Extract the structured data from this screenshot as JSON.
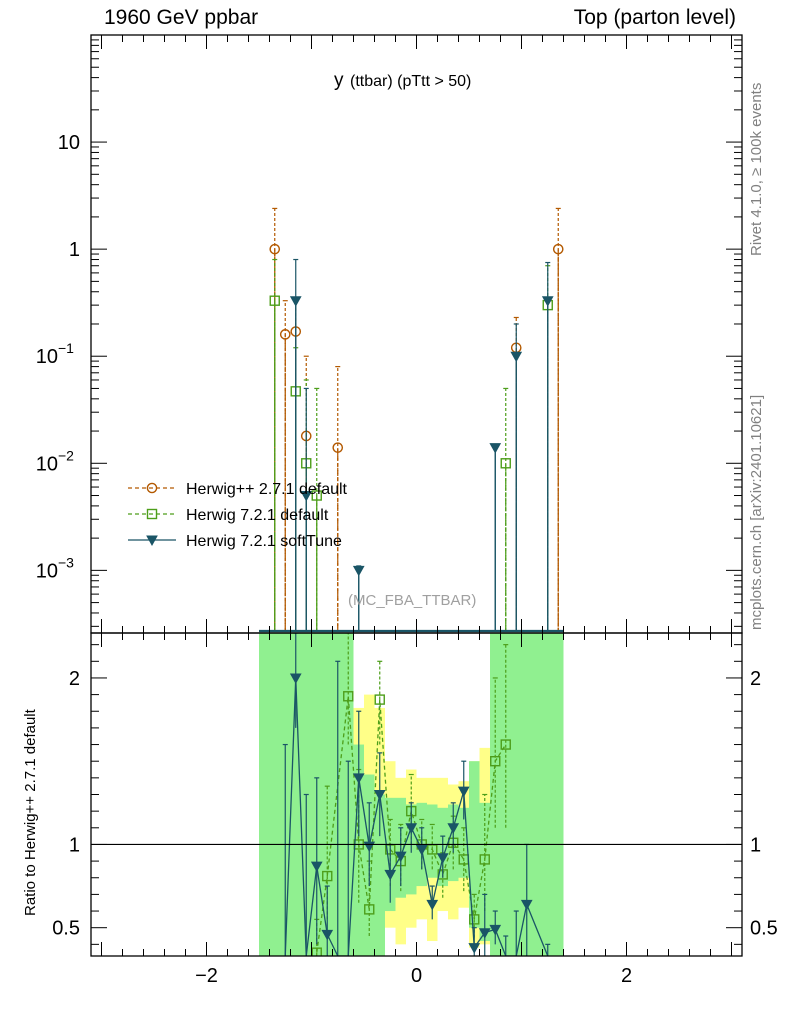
{
  "header": {
    "left": "1960 GeV ppbar",
    "right": "Top (parton level)"
  },
  "side_labels": {
    "rivet": "Rivet 4.1.0, ≥ 100k events",
    "mcplots": "mcplots.cern.ch [arXiv:2401.10621]"
  },
  "colors": {
    "herwigpp": "#b35900",
    "herwig721": "#4d9e1a",
    "softtune": "#1a5566",
    "band_green": "#90f090",
    "band_yellow": "#ffff88"
  },
  "chart_data": [
    {
      "type": "line",
      "panel": "main",
      "title_main": "y",
      "title_sub": "(ttbar)  (pTtt > 50)",
      "watermark": "(MC_FBA_TTBAR)",
      "yscale": "log",
      "xlim": [
        -3.1,
        3.1
      ],
      "ylim": [
        0.00026,
        100
      ],
      "ytick_labels": [
        {
          "value": 10,
          "label": "10"
        },
        {
          "value": 1,
          "label": "1"
        },
        {
          "value": 0.1,
          "label": "10",
          "exp": "−1"
        },
        {
          "value": 0.01,
          "label": "10",
          "exp": "−2"
        },
        {
          "value": 0.001,
          "label": "10",
          "exp": "−3"
        }
      ],
      "legend_position": "lower-left",
      "series": [
        {
          "name": "Herwig++ 2.7.1 default",
          "marker": "open-circle",
          "linestyle": "dashed",
          "points": [
            {
              "x": -1.35,
              "y": 1.0,
              "up": 2.4
            },
            {
              "x": -1.25,
              "y": 0.16,
              "up": 0.33
            },
            {
              "x": -1.15,
              "y": 0.17,
              "up": 0.35
            },
            {
              "x": -1.05,
              "y": 0.018,
              "up": 0.1
            },
            {
              "x": -0.75,
              "y": 0.014,
              "up": 0.08
            },
            {
              "x": 0.95,
              "y": 0.12,
              "up": 0.23
            },
            {
              "x": 1.35,
              "y": 1.0,
              "up": 2.4
            }
          ]
        },
        {
          "name": "Herwig 7.2.1 default",
          "marker": "open-square",
          "linestyle": "dashed",
          "points": [
            {
              "x": -1.35,
              "y": 0.33,
              "up": 0.8
            },
            {
              "x": -1.15,
              "y": 0.047,
              "up": 0.12
            },
            {
              "x": -1.05,
              "y": 0.01,
              "up": 0.06
            },
            {
              "x": -0.95,
              "y": 0.005,
              "up": 0.05
            },
            {
              "x": 0.85,
              "y": 0.01,
              "up": 0.05
            },
            {
              "x": 1.25,
              "y": 0.3,
              "up": 0.7
            }
          ]
        },
        {
          "name": "Herwig 7.2.1 softTune",
          "marker": "filled-triangle-down",
          "linestyle": "solid",
          "points": [
            {
              "x": -1.15,
              "y": 0.33,
              "up": 0.8
            },
            {
              "x": -1.05,
              "y": 0.005,
              "up": 0.05
            },
            {
              "x": -0.55,
              "y": 0.001,
              "up": 0.0011
            },
            {
              "x": 0.75,
              "y": 0.014,
              "up": 0.014
            },
            {
              "x": 0.95,
              "y": 0.1,
              "up": 0.2
            },
            {
              "x": 1.25,
              "y": 0.33,
              "up": 0.75
            }
          ]
        }
      ]
    },
    {
      "type": "line",
      "panel": "ratio",
      "ylabel": "Ratio to Herwig++ 2.7.1 default",
      "xlabel": "",
      "xlim": [
        -3.1,
        3.1
      ],
      "ylim": [
        0.33,
        2.27
      ],
      "yticks": [
        0.5,
        1,
        2
      ],
      "ytick_labels": [
        "0.5",
        "1",
        "2"
      ],
      "xticks": [
        -2,
        0,
        2
      ],
      "xtick_labels": [
        "−2",
        "0",
        "2"
      ],
      "reference_line": 1,
      "band": {
        "edges": [
          -1.5,
          -1.4,
          -1.3,
          -1.2,
          -1.1,
          -1.0,
          -0.9,
          -0.8,
          -0.7,
          -0.6,
          -0.5,
          -0.4,
          -0.3,
          -0.2,
          -0.1,
          0.0,
          0.1,
          0.2,
          0.3,
          0.4,
          0.5,
          0.6,
          0.7,
          0.8,
          0.9,
          1.0,
          1.1,
          1.2,
          1.3,
          1.4
        ],
        "yellow_lo": [
          0.33,
          0.33,
          0.33,
          0.33,
          0.33,
          0.33,
          0.33,
          0.33,
          0.33,
          0.33,
          0.33,
          0.33,
          0.5,
          0.4,
          0.5,
          0.55,
          0.42,
          0.6,
          0.55,
          0.62,
          0.38,
          0.4,
          0.33,
          0.33,
          0.33,
          0.33,
          0.33,
          0.33,
          0.33
        ],
        "yellow_hi": [
          2.27,
          2.27,
          2.27,
          2.27,
          2.27,
          2.27,
          2.0,
          2.27,
          2.27,
          1.82,
          1.9,
          1.82,
          1.5,
          1.4,
          1.45,
          1.4,
          1.4,
          1.4,
          1.36,
          1.38,
          1.5,
          1.58,
          2.27,
          2.27,
          2.27,
          2.27,
          2.27,
          2.27,
          2.27
        ],
        "green_lo": [
          0.33,
          0.33,
          0.33,
          0.33,
          0.33,
          0.33,
          0.33,
          0.33,
          0.33,
          0.33,
          0.33,
          0.33,
          0.6,
          0.68,
          0.7,
          0.75,
          0.8,
          0.75,
          0.78,
          0.8,
          0.5,
          0.42,
          0.33,
          0.33,
          0.33,
          0.33,
          0.33,
          0.33,
          0.33
        ],
        "green_hi": [
          2.27,
          2.27,
          2.27,
          2.27,
          2.27,
          2.27,
          2.27,
          2.27,
          2.27,
          1.6,
          1.42,
          1.3,
          1.28,
          1.28,
          1.24,
          1.25,
          1.24,
          1.22,
          1.24,
          1.22,
          1.5,
          1.25,
          2.27,
          2.27,
          2.27,
          2.27,
          2.27,
          2.27,
          2.27
        ]
      },
      "series": [
        {
          "name": "Herwig 7.2.1 default",
          "points": [
            {
              "x": -0.95,
              "y": 0.35,
              "lo": 0.33,
              "hi": 0.55
            },
            {
              "x": -0.85,
              "y": 0.81,
              "lo": 0.55,
              "hi": 1.35
            },
            {
              "x": -0.65,
              "y": 1.89,
              "lo": 1.6,
              "hi": 2.27
            },
            {
              "x": -0.55,
              "y": 1.0,
              "lo": 0.65,
              "hi": 1.45
            },
            {
              "x": -0.45,
              "y": 0.61,
              "lo": 0.45,
              "hi": 0.9
            },
            {
              "x": -0.35,
              "y": 1.87,
              "lo": 1.6,
              "hi": 2.1
            },
            {
              "x": -0.25,
              "y": 0.97,
              "lo": 0.75,
              "hi": 1.15
            },
            {
              "x": -0.15,
              "y": 0.9,
              "lo": 0.72,
              "hi": 1.12
            },
            {
              "x": -0.05,
              "y": 1.2,
              "lo": 1.0,
              "hi": 1.42
            },
            {
              "x": 0.05,
              "y": 1.0,
              "lo": 0.85,
              "hi": 1.15
            },
            {
              "x": 0.15,
              "y": 0.97,
              "lo": 0.85,
              "hi": 1.12
            },
            {
              "x": 0.25,
              "y": 0.82,
              "lo": 0.68,
              "hi": 0.95
            },
            {
              "x": 0.35,
              "y": 1.01,
              "lo": 0.85,
              "hi": 1.17
            },
            {
              "x": 0.45,
              "y": 0.91,
              "lo": 0.72,
              "hi": 1.1
            },
            {
              "x": 0.55,
              "y": 0.55,
              "lo": 0.44,
              "hi": 0.7
            },
            {
              "x": 0.65,
              "y": 0.91,
              "lo": 0.6,
              "hi": 1.3
            },
            {
              "x": 0.75,
              "y": 1.5,
              "lo": 1.1,
              "hi": 2.0
            },
            {
              "x": 0.85,
              "y": 1.6,
              "lo": 1.1,
              "hi": 2.2
            }
          ]
        },
        {
          "name": "Herwig 7.2.1 softTune",
          "points": [
            {
              "x": -1.25,
              "y": 0.33,
              "lo": 0.33,
              "hi": 1.6
            },
            {
              "x": -1.15,
              "y": 2.0,
              "lo": 1.7,
              "hi": 2.27
            },
            {
              "x": -1.05,
              "y": 0.33,
              "lo": 0.33,
              "hi": 1.3
            },
            {
              "x": -0.95,
              "y": 0.87,
              "lo": 0.4,
              "hi": 1.4
            },
            {
              "x": -0.85,
              "y": 0.46,
              "lo": 0.33,
              "hi": 0.75
            },
            {
              "x": -0.75,
              "y": 0.33,
              "lo": 0.33,
              "hi": 2.1
            },
            {
              "x": -0.65,
              "y": 0.33,
              "lo": 0.33,
              "hi": 1.5
            },
            {
              "x": -0.55,
              "y": 1.4,
              "lo": 1.05,
              "hi": 1.8
            },
            {
              "x": -0.45,
              "y": 0.99,
              "lo": 0.75,
              "hi": 1.25
            },
            {
              "x": -0.35,
              "y": 1.3,
              "lo": 1.05,
              "hi": 1.55
            },
            {
              "x": -0.25,
              "y": 0.82,
              "lo": 0.65,
              "hi": 1.0
            },
            {
              "x": -0.15,
              "y": 0.93,
              "lo": 0.75,
              "hi": 1.1
            },
            {
              "x": -0.05,
              "y": 1.1,
              "lo": 0.95,
              "hi": 1.25
            },
            {
              "x": 0.05,
              "y": 0.97,
              "lo": 0.85,
              "hi": 1.1
            },
            {
              "x": 0.15,
              "y": 0.64,
              "lo": 0.55,
              "hi": 0.75
            },
            {
              "x": 0.25,
              "y": 0.92,
              "lo": 0.8,
              "hi": 1.05
            },
            {
              "x": 0.35,
              "y": 1.1,
              "lo": 0.95,
              "hi": 1.25
            },
            {
              "x": 0.45,
              "y": 1.32,
              "lo": 1.15,
              "hi": 1.5
            },
            {
              "x": 0.55,
              "y": 0.38,
              "lo": 0.33,
              "hi": 0.5
            },
            {
              "x": 0.65,
              "y": 0.47,
              "lo": 0.33,
              "hi": 0.7
            },
            {
              "x": 0.75,
              "y": 0.49,
              "lo": 0.4,
              "hi": 0.6
            },
            {
              "x": 0.85,
              "y": 0.33,
              "lo": 0.33,
              "hi": 0.45
            },
            {
              "x": 0.95,
              "y": 0.33,
              "lo": 0.33,
              "hi": 0.6
            },
            {
              "x": 1.05,
              "y": 0.64,
              "lo": 0.33,
              "hi": 1.0
            },
            {
              "x": 1.25,
              "y": 0.33,
              "lo": 0.33,
              "hi": 0.4
            }
          ]
        }
      ]
    }
  ]
}
